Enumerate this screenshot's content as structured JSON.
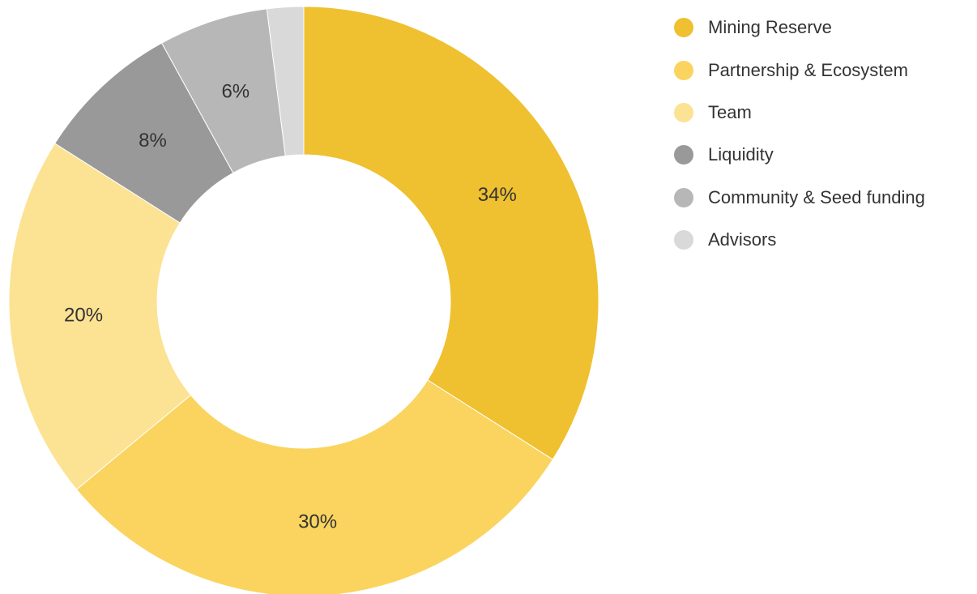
{
  "chart_data": {
    "type": "pie",
    "donut": true,
    "legend_position": "right",
    "categories": [
      "Mining Reserve",
      "Partnership & Ecosystem",
      "Team",
      "Liquidity",
      "Community & Seed funding",
      "Advisors"
    ],
    "values": [
      34,
      30,
      20,
      8,
      6,
      2
    ],
    "value_labels": [
      "34%",
      "30%",
      "20%",
      "8%",
      "6%",
      ""
    ],
    "colors": [
      "#EFC030",
      "#FAD45E",
      "#FCE293",
      "#999999",
      "#B7B7B7",
      "#D9D9D9"
    ]
  }
}
